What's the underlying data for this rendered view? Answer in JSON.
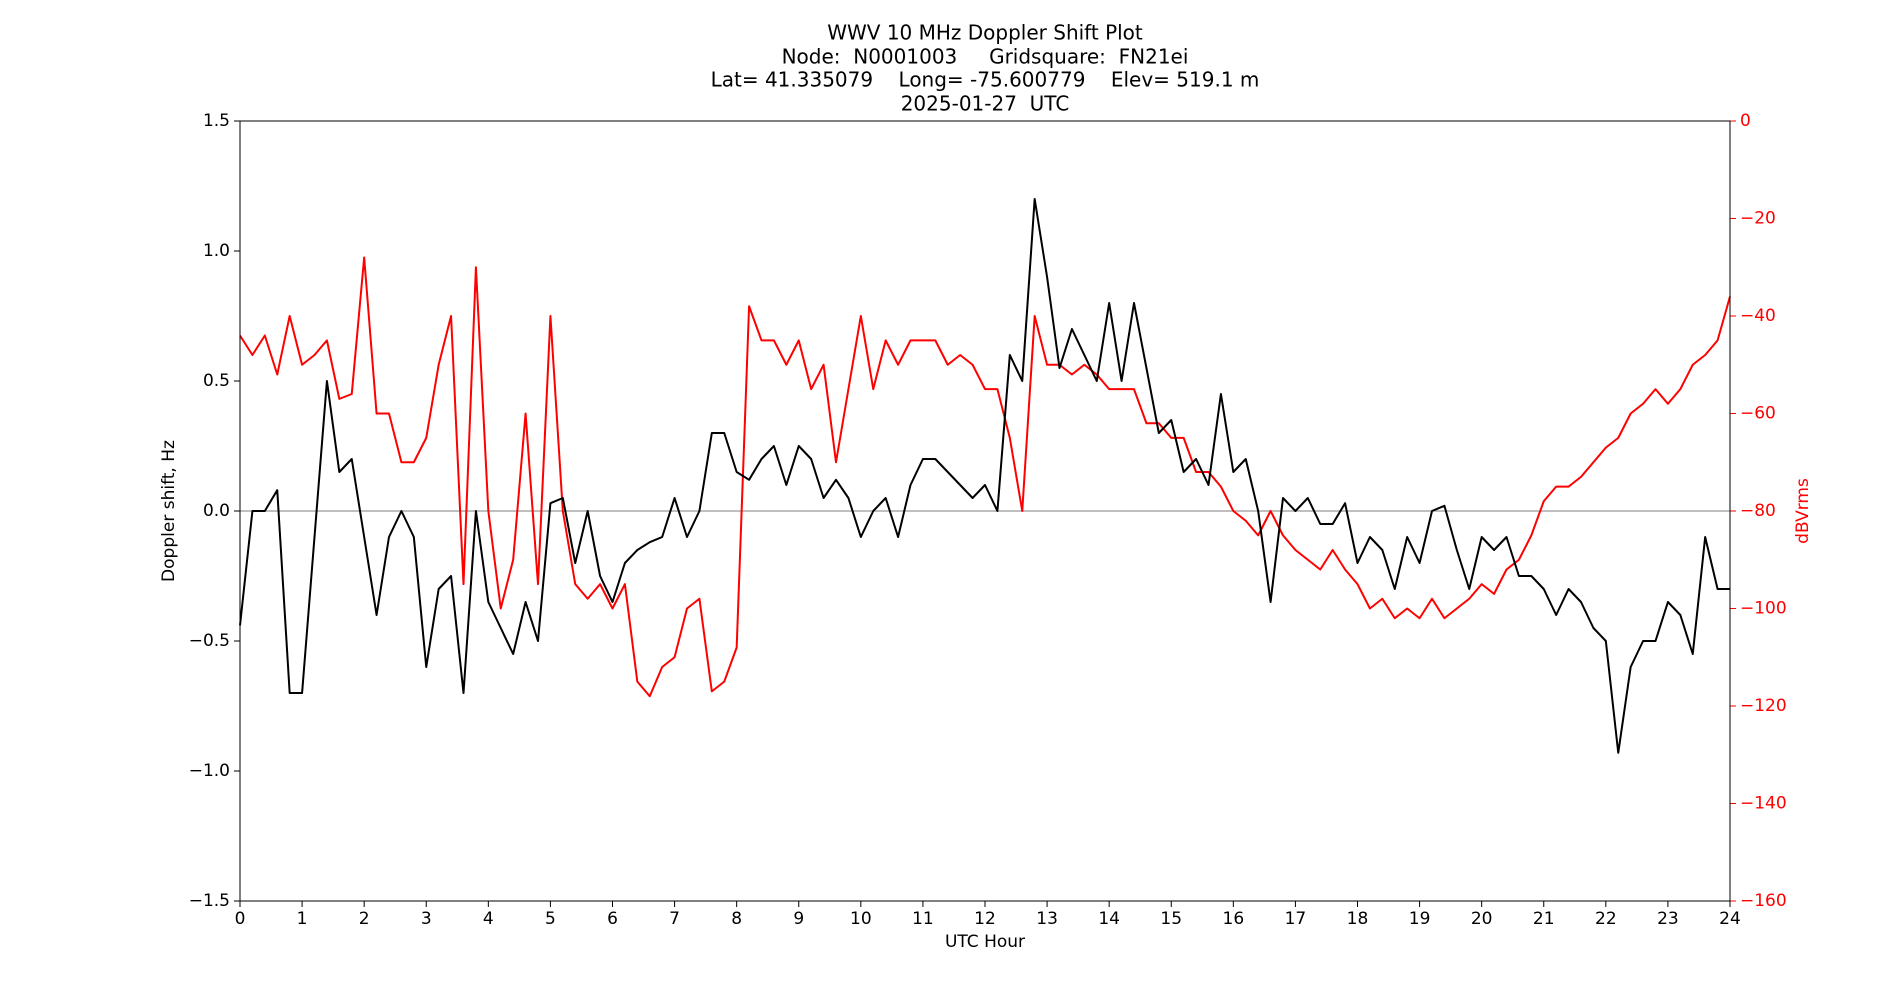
{
  "chart_data": {
    "type": "line",
    "title": [
      "WWV 10 MHz Doppler Shift Plot",
      "Node:  N0001003     Gridsquare:  FN21ei",
      "Lat= 41.335079    Long= -75.600779    Elev= 519.1 m",
      "2025-01-27  UTC"
    ],
    "xlabel": "UTC Hour",
    "ylabel": "Doppler shift, Hz",
    "y2label": "dBVrms",
    "xlim": [
      0,
      24
    ],
    "xticks": [
      0,
      1,
      2,
      3,
      4,
      5,
      6,
      7,
      8,
      9,
      10,
      11,
      12,
      13,
      14,
      15,
      16,
      17,
      18,
      19,
      20,
      21,
      22,
      23,
      24
    ],
    "ylim": [
      -1.5,
      1.5
    ],
    "yticks": [
      {
        "value": -1.5,
        "label": "−1.5"
      },
      {
        "value": -1,
        "label": "−1.0"
      },
      {
        "value": -0.5,
        "label": "−0.5"
      },
      {
        "value": 0,
        "label": "0.0"
      },
      0.5,
      {
        "value": 1,
        "label": "1.0"
      },
      1.5
    ],
    "y2lim": [
      -160,
      0
    ],
    "y2ticks": [
      {
        "value": -160,
        "label": "−160"
      },
      {
        "value": -140,
        "label": "−140"
      },
      {
        "value": -120,
        "label": "−120"
      },
      {
        "value": -100,
        "label": "−100"
      },
      {
        "value": -80,
        "label": "−80"
      },
      {
        "value": -60,
        "label": "−60"
      },
      {
        "value": -40,
        "label": "−40"
      },
      {
        "value": -20,
        "label": "−20"
      },
      0
    ],
    "hline": 0,
    "hline_color": "#999999",
    "x": [
      0,
      0.2,
      0.4,
      0.6,
      0.8,
      1,
      1.2,
      1.4,
      1.6,
      1.8,
      2,
      2.2,
      2.4,
      2.6,
      2.8,
      3,
      3.2,
      3.4,
      3.6,
      3.8,
      4,
      4.2,
      4.4,
      4.6,
      4.8,
      5,
      5.2,
      5.4,
      5.6,
      5.8,
      6,
      6.2,
      6.4,
      6.6,
      6.8,
      7,
      7.2,
      7.4,
      7.6,
      7.8,
      8,
      8.2,
      8.4,
      8.6,
      8.8,
      9,
      9.2,
      9.4,
      9.6,
      9.8,
      10,
      10.2,
      10.4,
      10.6,
      10.8,
      11,
      11.2,
      11.4,
      11.6,
      11.8,
      12,
      12.2,
      12.4,
      12.6,
      12.8,
      13,
      13.2,
      13.4,
      13.6,
      13.8,
      14,
      14.2,
      14.4,
      14.6,
      14.8,
      15,
      15.2,
      15.4,
      15.6,
      15.8,
      16,
      16.2,
      16.4,
      16.6,
      16.8,
      17,
      17.2,
      17.4,
      17.6,
      17.8,
      18,
      18.2,
      18.4,
      18.6,
      18.8,
      19,
      19.2,
      19.4,
      19.6,
      19.8,
      20,
      20.2,
      20.4,
      20.6,
      20.8,
      21,
      21.2,
      21.4,
      21.6,
      21.8,
      22,
      22.2,
      22.4,
      22.6,
      22.8,
      23,
      23.2,
      23.4,
      23.6,
      23.8,
      24
    ],
    "series": [
      {
        "color": "#000000",
        "values": [
          -0.44,
          0,
          0,
          0.08,
          -0.7,
          -0.7,
          -0.1,
          0.5,
          0.15,
          0.2,
          -0.1,
          -0.4,
          -0.1,
          0,
          -0.1,
          -0.6,
          -0.3,
          -0.25,
          -0.7,
          0,
          -0.35,
          -0.45,
          -0.55,
          -0.35,
          -0.5,
          0.03,
          0.05,
          -0.2,
          0,
          -0.25,
          -0.35,
          -0.2,
          -0.15,
          -0.12,
          -0.1,
          0.05,
          -0.1,
          0,
          0.3,
          0.3,
          0.15,
          0.12,
          0.2,
          0.25,
          0.1,
          0.25,
          0.2,
          0.05,
          0.12,
          0.05,
          -0.1,
          0,
          0.05,
          -0.1,
          0.1,
          0.2,
          0.2,
          0.15,
          0.1,
          0.05,
          0.1,
          0,
          0.6,
          0.5,
          1.2,
          0.9,
          0.55,
          0.7,
          0.6,
          0.5,
          0.8,
          0.5,
          0.8,
          0.55,
          0.3,
          0.35,
          0.15,
          0.2,
          0.1,
          0.45,
          0.15,
          0.2,
          0,
          -0.35,
          0.05,
          0,
          0.05,
          -0.05,
          -0.05,
          0.03,
          -0.2,
          -0.1,
          -0.15,
          -0.3,
          -0.1,
          -0.2,
          0,
          0.02,
          -0.15,
          -0.3,
          -0.1,
          -0.15,
          -0.1,
          -0.25,
          -0.25,
          -0.3,
          -0.4,
          -0.3,
          -0.35,
          -0.45,
          -0.5,
          -0.93,
          -0.6,
          -0.5,
          -0.5,
          -0.35,
          -0.4,
          -0.55,
          -0.1,
          -0.3,
          -0.3
        ]
      },
      {
        "color": "#ff0000",
        "axis": "y2",
        "values": [
          -44,
          -48,
          -44,
          -52,
          -40,
          -50,
          -48,
          -45,
          -57,
          -56,
          -28,
          -60,
          -60,
          -70,
          -70,
          -65,
          -50,
          -40,
          -95,
          -30,
          -80,
          -100,
          -90,
          -60,
          -95,
          -40,
          -80,
          -95,
          -98,
          -95,
          -100,
          -95,
          -115,
          -118,
          -112,
          -110,
          -100,
          -98,
          -117,
          -115,
          -108,
          -38,
          -45,
          -45,
          -50,
          -45,
          -55,
          -50,
          -70,
          -55,
          -40,
          -55,
          -45,
          -50,
          -45,
          -45,
          -45,
          -50,
          -48,
          -50,
          -55,
          -55,
          -65,
          -80,
          -40,
          -50,
          -50,
          -52,
          -50,
          -52,
          -55,
          -55,
          -55,
          -62,
          -62,
          -65,
          -65,
          -72,
          -72,
          -75,
          -80,
          -82,
          -85,
          -80,
          -85,
          -88,
          -90,
          -92,
          -88,
          -92,
          -95,
          -100,
          -98,
          -102,
          -100,
          -102,
          -98,
          -102,
          -100,
          -98,
          -95,
          -97,
          -92,
          -90,
          -85,
          -78,
          -75,
          -75,
          -73,
          -70,
          -67,
          -65,
          -60,
          -58,
          -55,
          -58,
          -55,
          -50,
          -48,
          -45,
          -36
        ]
      }
    ]
  }
}
